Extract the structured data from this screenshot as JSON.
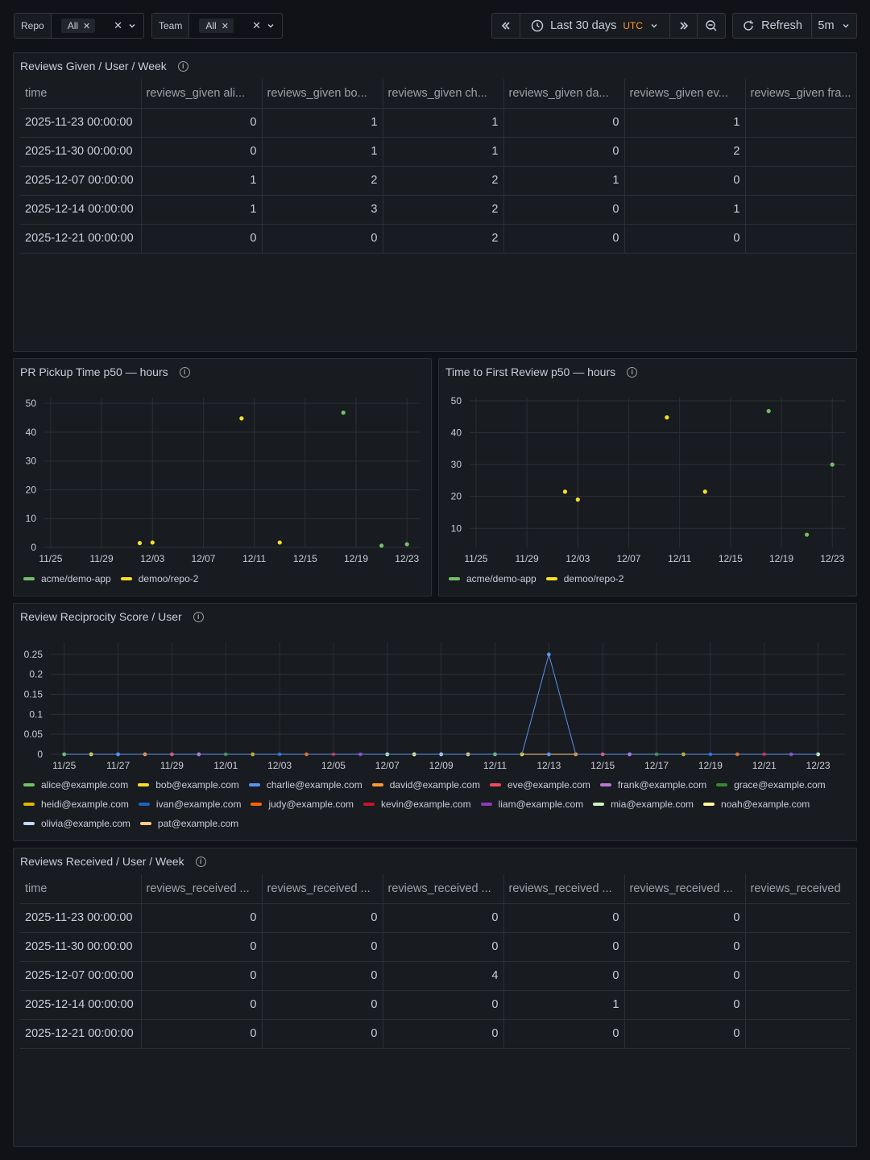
{
  "toolbar": {
    "repo": {
      "label": "Repo",
      "value": "All"
    },
    "team": {
      "label": "Team",
      "value": "All"
    },
    "time_range": "Last 30 days",
    "timezone": "UTC",
    "refresh_label": "Refresh",
    "refresh_interval": "5m"
  },
  "reviews_given": {
    "title": "Reviews Given / User / Week",
    "columns": [
      "time",
      "reviews_given ali...",
      "reviews_given bo...",
      "reviews_given ch...",
      "reviews_given da...",
      "reviews_given ev...",
      "reviews_given fra..."
    ],
    "rows": [
      [
        "2025-11-23 00:00:00",
        "0",
        "1",
        "1",
        "0",
        "1",
        ""
      ],
      [
        "2025-11-30 00:00:00",
        "0",
        "1",
        "1",
        "0",
        "2",
        ""
      ],
      [
        "2025-12-07 00:00:00",
        "1",
        "2",
        "2",
        "1",
        "0",
        ""
      ],
      [
        "2025-12-14 00:00:00",
        "1",
        "3",
        "2",
        "0",
        "1",
        ""
      ],
      [
        "2025-12-21 00:00:00",
        "0",
        "0",
        "2",
        "0",
        "0",
        ""
      ]
    ]
  },
  "reviews_received": {
    "title": "Reviews Received / User / Week",
    "columns": [
      "time",
      "reviews_received ...",
      "reviews_received ...",
      "reviews_received ...",
      "reviews_received ...",
      "reviews_received ...",
      "reviews_received"
    ],
    "rows": [
      [
        "2025-11-23 00:00:00",
        "0",
        "0",
        "0",
        "0",
        "0",
        ""
      ],
      [
        "2025-11-30 00:00:00",
        "0",
        "0",
        "0",
        "0",
        "0",
        ""
      ],
      [
        "2025-12-07 00:00:00",
        "0",
        "0",
        "4",
        "0",
        "0",
        ""
      ],
      [
        "2025-12-14 00:00:00",
        "0",
        "0",
        "0",
        "1",
        "0",
        ""
      ],
      [
        "2025-12-21 00:00:00",
        "0",
        "0",
        "0",
        "0",
        "0",
        ""
      ]
    ]
  },
  "chart_data": [
    {
      "type": "scatter",
      "title": "PR Pickup Time p50 — hours",
      "x_ticks": [
        "11/25",
        "11/29",
        "12/03",
        "12/07",
        "12/11",
        "12/15",
        "12/19",
        "12/23"
      ],
      "y_ticks": [
        "0",
        "10",
        "20",
        "30",
        "40",
        "50"
      ],
      "xlim": [
        "2025-11-24T12:00",
        "2025-12-24T00:00"
      ],
      "ylim": [
        0,
        52
      ],
      "series": [
        {
          "name": "acme/demo-app",
          "color": "#73bf69",
          "points": [
            [
              "2025-12-18T00:00",
              46.8
            ],
            [
              "2025-12-21T00:00",
              0.6
            ],
            [
              "2025-12-23T00:00",
              1.1
            ]
          ]
        },
        {
          "name": "demoo/repo-2",
          "color": "#fade2a",
          "points": [
            [
              "2025-12-02T00:00",
              1.5
            ],
            [
              "2025-12-03T00:00",
              1.7
            ],
            [
              "2025-12-10T00:00",
              44.8
            ],
            [
              "2025-12-13T00:00",
              1.7
            ]
          ]
        }
      ]
    },
    {
      "type": "scatter",
      "title": "Time to First Review p50 — hours",
      "x_ticks": [
        "11/25",
        "11/29",
        "12/03",
        "12/07",
        "12/11",
        "12/15",
        "12/19",
        "12/23"
      ],
      "y_ticks": [
        "10",
        "20",
        "30",
        "40",
        "50"
      ],
      "xlim": [
        "2025-11-24T12:00",
        "2025-12-24T00:00"
      ],
      "ylim": [
        4,
        51
      ],
      "series": [
        {
          "name": "acme/demo-app",
          "color": "#73bf69",
          "points": [
            [
              "2025-12-18T00:00",
              46.8
            ],
            [
              "2025-12-21T00:00",
              8.0
            ],
            [
              "2025-12-23T00:00",
              30.0
            ]
          ]
        },
        {
          "name": "demoo/repo-2",
          "color": "#fade2a",
          "points": [
            [
              "2025-12-02T00:00",
              21.5
            ],
            [
              "2025-12-03T00:00",
              19.0
            ],
            [
              "2025-12-10T00:00",
              44.8
            ],
            [
              "2025-12-13T00:00",
              21.5
            ]
          ]
        }
      ]
    },
    {
      "type": "line",
      "title": "Review Reciprocity Score / User",
      "x_ticks": [
        "11/25",
        "11/27",
        "11/29",
        "12/01",
        "12/03",
        "12/05",
        "12/07",
        "12/09",
        "12/11",
        "12/13",
        "12/15",
        "12/17",
        "12/19",
        "12/21",
        "12/23"
      ],
      "y_ticks": [
        "0",
        "0.05",
        "0.1",
        "0.15",
        "0.2",
        "0.25"
      ],
      "xlim": [
        "2025-11-24T12:00",
        "2025-12-24T00:00"
      ],
      "ylim": [
        0,
        0.28
      ],
      "x": [
        "2025-11-25",
        "2025-11-26",
        "2025-11-27",
        "2025-11-28",
        "2025-11-29",
        "2025-11-30",
        "2025-12-01",
        "2025-12-02",
        "2025-12-03",
        "2025-12-04",
        "2025-12-05",
        "2025-12-06",
        "2025-12-07",
        "2025-12-08",
        "2025-12-09",
        "2025-12-10",
        "2025-12-11",
        "2025-12-12",
        "2025-12-13",
        "2025-12-14",
        "2025-12-15",
        "2025-12-16",
        "2025-12-17",
        "2025-12-18",
        "2025-12-19",
        "2025-12-20",
        "2025-12-21",
        "2025-12-22",
        "2025-12-23"
      ],
      "series": [
        {
          "name": "alice@example.com",
          "color": "#73bf69",
          "values": "zero"
        },
        {
          "name": "bob@example.com",
          "color": "#fade2a",
          "values": "zero"
        },
        {
          "name": "charlie@example.com",
          "color": "#5794f2",
          "values": "spike"
        },
        {
          "name": "david@example.com",
          "color": "#ff9830",
          "values": "zero"
        },
        {
          "name": "eve@example.com",
          "color": "#f2495c",
          "values": "zero"
        },
        {
          "name": "frank@example.com",
          "color": "#b877d9",
          "values": "zero"
        },
        {
          "name": "grace@example.com",
          "color": "#37872d",
          "values": "zero"
        },
        {
          "name": "heidi@example.com",
          "color": "#e0b400",
          "values": "zero"
        },
        {
          "name": "ivan@example.com",
          "color": "#1f60c4",
          "values": "zero"
        },
        {
          "name": "judy@example.com",
          "color": "#fa6400",
          "values": "zero"
        },
        {
          "name": "kevin@example.com",
          "color": "#c4162a",
          "values": "zero"
        },
        {
          "name": "liam@example.com",
          "color": "#8f3bb8",
          "values": "zero"
        },
        {
          "name": "mia@example.com",
          "color": "#c8f2c2",
          "values": "zero"
        },
        {
          "name": "noah@example.com",
          "color": "#fff899",
          "values": "zero"
        },
        {
          "name": "olivia@example.com",
          "color": "#c0d8ff",
          "values": "zero"
        },
        {
          "name": "pat@example.com",
          "color": "#ffcb7d",
          "values": "zero"
        }
      ],
      "charlie_values": [
        0,
        0,
        0,
        0,
        0,
        0,
        0,
        0,
        0,
        0,
        0,
        0,
        0,
        0,
        0,
        0,
        0,
        0,
        0.25,
        0,
        0,
        0,
        0,
        0,
        0,
        0,
        0,
        0,
        0
      ]
    }
  ]
}
